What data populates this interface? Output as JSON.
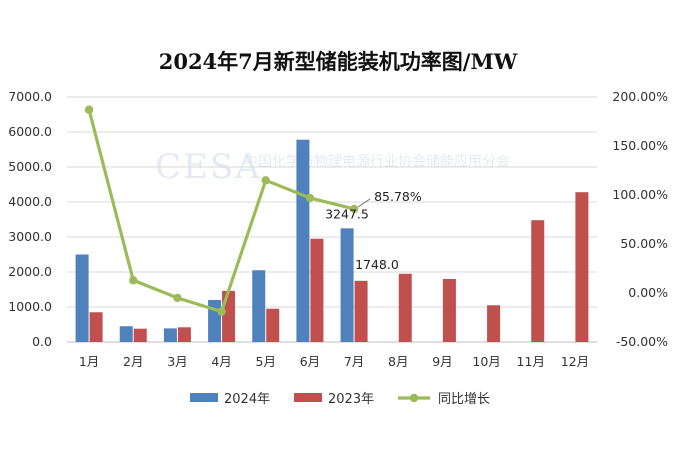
{
  "chart_data": {
    "type": "bar",
    "title": "2024年7月新型储能装机功率图/MW",
    "categories": [
      "1月",
      "2月",
      "3月",
      "4月",
      "5月",
      "6月",
      "7月",
      "8月",
      "9月",
      "10月",
      "11月",
      "12月"
    ],
    "series": [
      {
        "name": "2024年",
        "type": "bar",
        "axis": "left",
        "color": "#4f81bd",
        "values": [
          2500,
          450,
          390,
          1200,
          2050,
          5780,
          3247.5,
          null,
          null,
          null,
          null,
          null
        ]
      },
      {
        "name": "2023年",
        "type": "bar",
        "axis": "left",
        "color": "#c0504d",
        "values": [
          850,
          380,
          420,
          1460,
          950,
          2950,
          1748.0,
          1950,
          1800,
          1050,
          3480,
          4280
        ]
      },
      {
        "name": "同比增长",
        "type": "line",
        "axis": "right",
        "color": "#9bbb59",
        "values": [
          187,
          13,
          -5,
          -19,
          115,
          97,
          85.78,
          null,
          null,
          null,
          null,
          null
        ]
      }
    ],
    "y_left": {
      "min": 0,
      "max": 7000,
      "step": 1000,
      "ticks": [
        "0.0",
        "1000.0",
        "2000.0",
        "3000.0",
        "4000.0",
        "5000.0",
        "6000.0",
        "7000.0"
      ]
    },
    "y_right": {
      "min": -50,
      "max": 200,
      "step": 50,
      "ticks": [
        "-50.00%",
        "0.00%",
        "50.00%",
        "100.00%",
        "150.00%",
        "200.00%"
      ]
    },
    "data_labels": [
      {
        "series": "2024年",
        "index": 6,
        "text": "3247.5"
      },
      {
        "series": "2023年",
        "index": 6,
        "text": "1748.0"
      },
      {
        "series": "同比增长",
        "index": 6,
        "text": "85.78%"
      }
    ],
    "grid": true,
    "legend": "bottom"
  },
  "watermark": {
    "logo": "CESA",
    "text": "中国化学与物理电源行业协会储能应用分会"
  }
}
